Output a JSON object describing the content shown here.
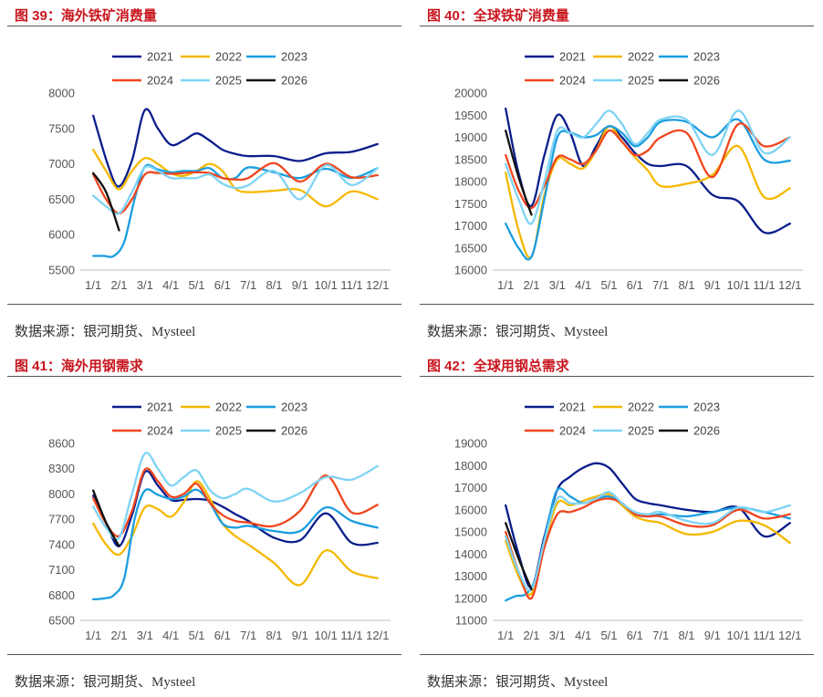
{
  "source_text": "数据来源：银河期货、Mysteel",
  "colors": {
    "title": "#c8161e"
  },
  "legend": {
    "years": [
      "2021",
      "2022",
      "2023",
      "2024",
      "2025",
      "2026"
    ],
    "colors": [
      "#0a1e8c",
      "#f5b800",
      "#1a9ee0",
      "#f0461e",
      "#7fd3f5",
      "#111111"
    ]
  },
  "chart_data": [
    {
      "type": "line",
      "title": "图 39：海外铁矿消费量",
      "categories": [
        "1/1",
        "2/1",
        "3/1",
        "4/1",
        "5/1",
        "6/1",
        "7/1",
        "8/1",
        "9/1",
        "10/1",
        "11/1",
        "12/1"
      ],
      "ylim": [
        5500,
        8000
      ],
      "yticks": [
        5500,
        6000,
        6500,
        7000,
        7500,
        8000
      ],
      "series": [
        {
          "name": "2021",
          "x": [
            0,
            0.6,
            1,
            1.5,
            2,
            2.5,
            3,
            3.5,
            4,
            4.5,
            5,
            5.5,
            6,
            7,
            8,
            9,
            10,
            11
          ],
          "values": [
            7680,
            6950,
            6680,
            7050,
            7760,
            7500,
            7270,
            7330,
            7430,
            7330,
            7200,
            7140,
            7110,
            7110,
            7040,
            7150,
            7170,
            7280
          ]
        },
        {
          "name": "2022",
          "x": [
            0,
            0.5,
            1,
            1.5,
            2,
            2.5,
            3,
            3.5,
            4,
            4.5,
            5,
            5.5,
            6,
            7,
            8,
            9,
            10,
            11
          ],
          "values": [
            7200,
            6900,
            6640,
            6900,
            7080,
            7000,
            6870,
            6830,
            6900,
            7000,
            6900,
            6650,
            6600,
            6620,
            6630,
            6400,
            6610,
            6500
          ]
        },
        {
          "name": "2023",
          "x": [
            0,
            0.4,
            0.8,
            1.2,
            1.6,
            2,
            2.5,
            3,
            3.5,
            4,
            4.5,
            5,
            5.5,
            6,
            7,
            8,
            9,
            10,
            11
          ],
          "values": [
            5700,
            5700,
            5700,
            5900,
            6500,
            6960,
            6920,
            6880,
            6900,
            6900,
            6940,
            6800,
            6800,
            6950,
            6880,
            6800,
            6930,
            6800,
            6940
          ]
        },
        {
          "name": "2024",
          "x": [
            0,
            0.5,
            1,
            1.5,
            2,
            2.5,
            3,
            3.5,
            4,
            4.5,
            5,
            5.5,
            6,
            7,
            8,
            9,
            10,
            11
          ],
          "values": [
            6850,
            6500,
            6300,
            6500,
            6850,
            6870,
            6860,
            6870,
            6880,
            6870,
            6800,
            6780,
            6800,
            7010,
            6750,
            7000,
            6810,
            6840
          ]
        },
        {
          "name": "2025",
          "x": [
            0,
            0.5,
            1,
            1.5,
            2,
            2.5,
            3,
            3.5,
            4,
            4.5,
            5,
            5.5,
            6,
            7,
            8,
            9,
            10,
            11
          ],
          "values": [
            6550,
            6400,
            6300,
            6600,
            6950,
            6900,
            6800,
            6800,
            6800,
            6850,
            6720,
            6660,
            6700,
            6900,
            6500,
            6980,
            6700,
            6940
          ]
        },
        {
          "name": "2026",
          "x": [
            0,
            0.5,
            1
          ],
          "values": [
            6870,
            6600,
            6060
          ]
        }
      ]
    },
    {
      "type": "line",
      "title": "图 40：全球铁矿消费量",
      "categories": [
        "1/1",
        "2/1",
        "3/1",
        "4/1",
        "5/1",
        "6/1",
        "7/1",
        "8/1",
        "9/1",
        "10/1",
        "11/1",
        "12/1"
      ],
      "ylim": [
        16000,
        20000
      ],
      "yticks": [
        16000,
        16500,
        17000,
        17500,
        18000,
        18500,
        19000,
        19500,
        20000
      ],
      "series": [
        {
          "name": "2021",
          "x": [
            0,
            0.5,
            1,
            1.5,
            2,
            2.5,
            3,
            3.5,
            4,
            4.5,
            5,
            5.5,
            6,
            7,
            8,
            9,
            10,
            11
          ],
          "values": [
            19650,
            18200,
            17450,
            18600,
            19500,
            19100,
            18350,
            18800,
            19250,
            19000,
            18650,
            18400,
            18350,
            18350,
            17700,
            17550,
            16850,
            17050
          ]
        },
        {
          "name": "2022",
          "x": [
            0,
            0.5,
            1,
            1.5,
            2,
            2.5,
            3,
            3.5,
            4,
            4.5,
            5,
            5.5,
            6,
            7,
            8,
            9,
            10,
            11
          ],
          "values": [
            18200,
            16900,
            16300,
            17700,
            18500,
            18400,
            18300,
            18700,
            19250,
            18900,
            18550,
            18250,
            17900,
            17950,
            18150,
            18800,
            17650,
            17850
          ]
        },
        {
          "name": "2023",
          "x": [
            0,
            0.5,
            1,
            1.5,
            2,
            2.5,
            3,
            3.5,
            4,
            4.5,
            5,
            5.5,
            6,
            7,
            8,
            9,
            10,
            11
          ],
          "values": [
            17050,
            16500,
            16300,
            17600,
            19000,
            19100,
            19000,
            19050,
            19250,
            19100,
            18800,
            19000,
            19350,
            19350,
            19000,
            19400,
            18500,
            18470
          ]
        },
        {
          "name": "2024",
          "x": [
            0,
            0.5,
            1,
            1.5,
            2,
            2.5,
            3,
            3.5,
            4,
            4.5,
            5,
            5.5,
            6,
            7,
            8,
            9,
            10,
            11
          ],
          "values": [
            18600,
            17800,
            17400,
            17900,
            18550,
            18500,
            18400,
            18700,
            19150,
            18900,
            18600,
            18700,
            19000,
            19100,
            18100,
            19300,
            18800,
            19000
          ]
        },
        {
          "name": "2025",
          "x": [
            0,
            0.5,
            1,
            1.5,
            2,
            2.5,
            3,
            3.5,
            4,
            4.5,
            5,
            5.5,
            6,
            7,
            8,
            9,
            10,
            11
          ],
          "values": [
            18400,
            17600,
            17050,
            18000,
            19150,
            19100,
            19000,
            19300,
            19600,
            19300,
            18850,
            19100,
            19400,
            19400,
            18600,
            19600,
            18650,
            19000
          ]
        },
        {
          "name": "2026",
          "x": [
            0,
            0.5,
            1
          ],
          "values": [
            19150,
            18100,
            17250
          ]
        }
      ]
    },
    {
      "type": "line",
      "title": "图 41：海外用钢需求",
      "categories": [
        "1/1",
        "2/1",
        "3/1",
        "4/1",
        "5/1",
        "6/1",
        "7/1",
        "8/1",
        "9/1",
        "10/1",
        "11/1",
        "12/1"
      ],
      "ylim": [
        6500,
        8600
      ],
      "yticks": [
        6500,
        6800,
        7100,
        7400,
        7700,
        8000,
        8300,
        8600
      ],
      "series": [
        {
          "name": "2021",
          "x": [
            0,
            0.5,
            1,
            1.5,
            2,
            2.5,
            3,
            3.5,
            4,
            4.5,
            5,
            5.5,
            6,
            7,
            8,
            9,
            10,
            11
          ],
          "values": [
            7980,
            7650,
            7380,
            7750,
            8260,
            8100,
            7930,
            7930,
            7940,
            7920,
            7850,
            7760,
            7680,
            7480,
            7450,
            7770,
            7420,
            7420
          ]
        },
        {
          "name": "2022",
          "x": [
            0,
            0.5,
            1,
            1.5,
            2,
            2.5,
            3,
            3.5,
            4,
            4.5,
            5,
            5.5,
            6,
            7,
            8,
            9,
            10,
            11
          ],
          "values": [
            7650,
            7400,
            7280,
            7500,
            7840,
            7820,
            7730,
            7900,
            8150,
            7950,
            7650,
            7500,
            7400,
            7180,
            6920,
            7330,
            7080,
            7000
          ]
        },
        {
          "name": "2023",
          "x": [
            0,
            0.4,
            0.8,
            1.2,
            1.6,
            2,
            2.5,
            3,
            3.5,
            4,
            4.5,
            5,
            5.5,
            6,
            7,
            8,
            9,
            10,
            11
          ],
          "values": [
            6750,
            6760,
            6800,
            7000,
            7700,
            8040,
            7990,
            7940,
            7970,
            8050,
            7900,
            7650,
            7600,
            7620,
            7560,
            7560,
            7840,
            7680,
            7600
          ]
        },
        {
          "name": "2024",
          "x": [
            0,
            0.5,
            1,
            1.5,
            2,
            2.5,
            3,
            3.5,
            4,
            4.5,
            5,
            5.5,
            6,
            7,
            8,
            9,
            10,
            11
          ],
          "values": [
            7950,
            7650,
            7500,
            7800,
            8290,
            8150,
            7970,
            8000,
            8120,
            7900,
            7750,
            7680,
            7660,
            7620,
            7800,
            8220,
            7780,
            7870
          ]
        },
        {
          "name": "2025",
          "x": [
            0,
            0.5,
            1,
            1.5,
            2,
            2.5,
            3,
            3.5,
            4,
            4.5,
            5,
            5.5,
            6,
            7,
            8,
            9,
            10,
            11
          ],
          "values": [
            7850,
            7600,
            7480,
            8000,
            8480,
            8300,
            8100,
            8200,
            8280,
            8050,
            7950,
            8000,
            8060,
            7910,
            8010,
            8200,
            8170,
            8330
          ]
        },
        {
          "name": "2026",
          "x": [
            0,
            0.5,
            1
          ],
          "values": [
            8040,
            7660,
            7380
          ]
        }
      ]
    },
    {
      "type": "line",
      "title": "图 42：全球用钢总需求",
      "categories": [
        "1/1",
        "2/1",
        "3/1",
        "4/1",
        "5/1",
        "6/1",
        "7/1",
        "8/1",
        "9/1",
        "10/1",
        "11/1",
        "12/1"
      ],
      "ylim": [
        11000,
        19000
      ],
      "yticks": [
        11000,
        12000,
        13000,
        14000,
        15000,
        16000,
        17000,
        18000,
        19000
      ],
      "series": [
        {
          "name": "2021",
          "x": [
            0,
            0.5,
            1,
            1.5,
            2,
            2.5,
            3,
            3.5,
            4,
            4.5,
            5,
            5.5,
            6,
            7,
            8,
            9,
            10,
            11
          ],
          "values": [
            16200,
            14000,
            12500,
            14800,
            16900,
            17500,
            17900,
            18100,
            17900,
            17200,
            16500,
            16300,
            16200,
            16000,
            15900,
            16100,
            14800,
            15400
          ]
        },
        {
          "name": "2022",
          "x": [
            0,
            0.5,
            1,
            1.5,
            2,
            2.5,
            3,
            3.5,
            4,
            4.5,
            5,
            5.5,
            6,
            7,
            8,
            9,
            10,
            11
          ],
          "values": [
            14600,
            13000,
            12200,
            14400,
            16300,
            16200,
            16400,
            16600,
            16700,
            16200,
            15700,
            15500,
            15400,
            14900,
            15000,
            15500,
            15300,
            14500
          ]
        },
        {
          "name": "2023",
          "x": [
            0,
            0.4,
            0.8,
            1.2,
            1.6,
            2,
            2.5,
            3,
            3.5,
            4,
            4.5,
            5,
            5.5,
            6,
            7,
            8,
            9,
            10,
            11
          ],
          "values": [
            11900,
            12100,
            12200,
            13000,
            15200,
            16900,
            16600,
            16300,
            16500,
            16600,
            16300,
            15800,
            15700,
            15800,
            15700,
            15900,
            16100,
            15900,
            15600
          ]
        },
        {
          "name": "2024",
          "x": [
            0,
            0.5,
            1,
            1.5,
            2,
            2.5,
            3,
            3.5,
            4,
            4.5,
            5,
            5.5,
            6,
            7,
            8,
            9,
            10,
            11
          ],
          "values": [
            15000,
            13200,
            12000,
            14300,
            15800,
            15900,
            16100,
            16400,
            16500,
            16300,
            15800,
            15700,
            15700,
            15300,
            15300,
            16000,
            15600,
            15800
          ]
        },
        {
          "name": "2025",
          "x": [
            0,
            0.5,
            1,
            1.5,
            2,
            2.5,
            3,
            3.5,
            4,
            4.5,
            5,
            5.5,
            6,
            7,
            8,
            9,
            10,
            11
          ],
          "values": [
            14800,
            13200,
            12400,
            14600,
            16500,
            16300,
            16300,
            16500,
            16800,
            16300,
            15900,
            15800,
            15900,
            15500,
            15400,
            16100,
            15900,
            16200
          ]
        },
        {
          "name": "2026",
          "x": [
            0,
            0.5,
            1
          ],
          "values": [
            15400,
            13800,
            12400
          ]
        }
      ]
    }
  ]
}
